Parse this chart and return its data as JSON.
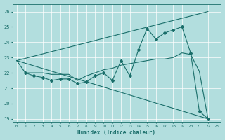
{
  "title": "",
  "xlabel": "Humidex (Indice chaleur)",
  "ylabel": "",
  "bg_color": "#b2dede",
  "grid_color": "#ffffff",
  "line_color": "#1a6e6a",
  "xlim": [
    -0.5,
    23.5
  ],
  "ylim": [
    18.8,
    26.5
  ],
  "yticks": [
    19,
    20,
    21,
    22,
    23,
    24,
    25,
    26
  ],
  "xticks": [
    0,
    1,
    2,
    3,
    4,
    5,
    6,
    7,
    8,
    9,
    10,
    11,
    12,
    13,
    14,
    15,
    16,
    17,
    18,
    19,
    20,
    21,
    22,
    23
  ],
  "series": [
    {
      "x": [
        0,
        22
      ],
      "y": [
        22.8,
        19.0
      ],
      "marker": null,
      "linestyle": "-"
    },
    {
      "x": [
        0,
        22
      ],
      "y": [
        22.8,
        26.0
      ],
      "marker": null,
      "linestyle": "-"
    },
    {
      "x": [
        1,
        2,
        3,
        4,
        5,
        6,
        7,
        8,
        9,
        10,
        11,
        12,
        13,
        14,
        15,
        16,
        17,
        18,
        19,
        20,
        21,
        22
      ],
      "y": [
        22.0,
        21.8,
        21.7,
        21.5,
        21.6,
        21.6,
        21.3,
        21.4,
        21.8,
        22.0,
        21.5,
        22.8,
        21.8,
        23.5,
        24.9,
        24.2,
        24.6,
        24.8,
        25.0,
        23.3,
        19.5,
        19.0
      ],
      "marker": "D",
      "linestyle": "-"
    },
    {
      "x": [
        0,
        1,
        2,
        3,
        4,
        5,
        6,
        7,
        8,
        9,
        10,
        11,
        12,
        13,
        14,
        15,
        16,
        17,
        18,
        19,
        20,
        21,
        22
      ],
      "y": [
        22.8,
        22.0,
        22.0,
        22.0,
        21.9,
        21.9,
        21.9,
        21.5,
        21.8,
        22.0,
        22.2,
        22.3,
        22.5,
        22.6,
        22.7,
        22.8,
        22.9,
        22.9,
        23.0,
        23.3,
        23.2,
        22.1,
        19.0
      ],
      "marker": null,
      "linestyle": "-"
    }
  ]
}
